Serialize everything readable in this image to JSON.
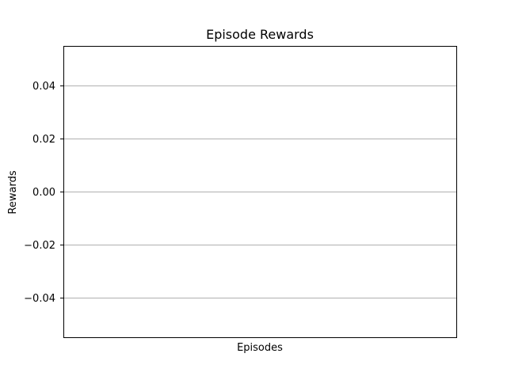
{
  "chart_data": {
    "type": "line",
    "title": "Episode Rewards",
    "xlabel": "Episodes",
    "ylabel": "Rewards",
    "series": [
      {
        "values": []
      }
    ],
    "ylim": [
      -0.055,
      0.055
    ],
    "yticks": [
      0.04,
      0.02,
      0.0,
      -0.02,
      -0.04
    ],
    "ytick_labels": [
      "0.04",
      "0.02",
      "0.00",
      "−0.02",
      "−0.04"
    ],
    "grid": {
      "y": true,
      "x": false
    },
    "colors": {
      "grid": "#b0b0b0",
      "axes": "#000000",
      "background": "#ffffff"
    }
  }
}
